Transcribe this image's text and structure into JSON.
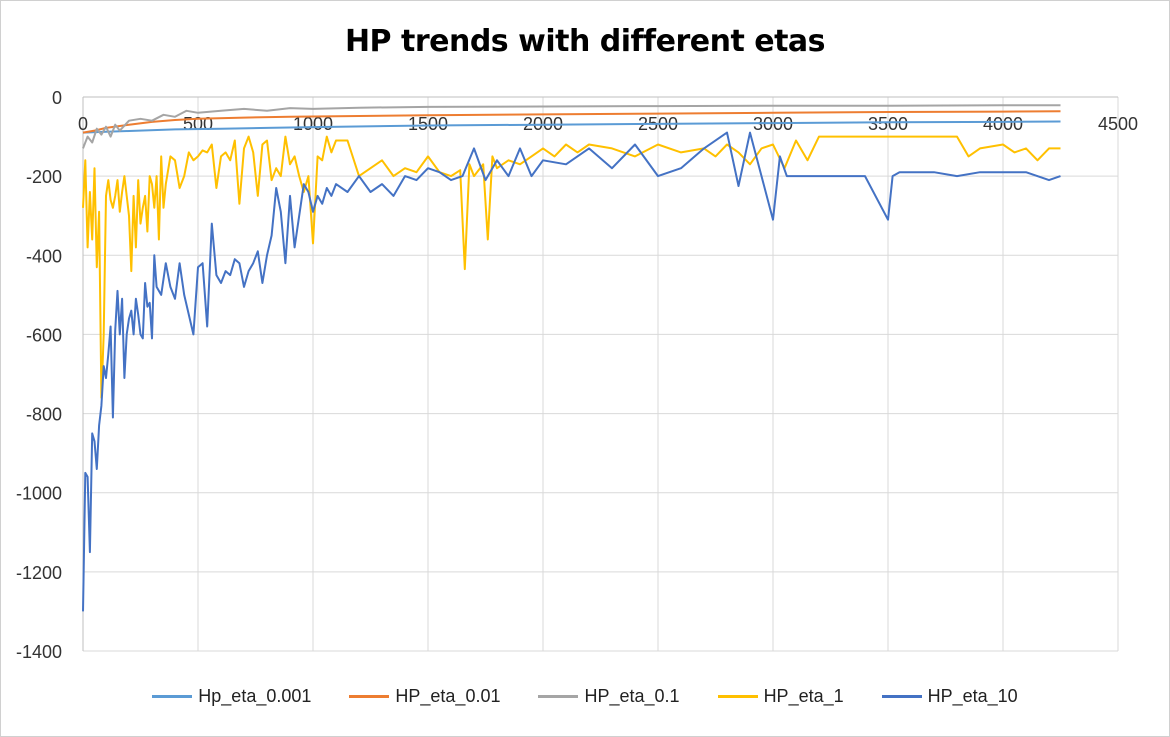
{
  "chart_data": {
    "type": "line",
    "title": "HP trends with different etas",
    "xlabel": "",
    "ylabel": "",
    "xlim": [
      0,
      4500
    ],
    "ylim": [
      -1400,
      0
    ],
    "x_ticks": [
      "0",
      "500",
      "1000",
      "1500",
      "2000",
      "2500",
      "3000",
      "3500",
      "4000",
      "4500"
    ],
    "y_ticks": [
      "0",
      "-200",
      "-400",
      "-600",
      "-800",
      "-1000",
      "-1200",
      "-1400"
    ],
    "grid": true,
    "legend_position": "bottom",
    "series": [
      {
        "name": "Hp_eta_0.001",
        "color": "#5B9BD5",
        "x": [
          0,
          100,
          200,
          400,
          600,
          800,
          1000,
          1500,
          2000,
          2500,
          3000,
          3500,
          4000,
          4250
        ],
        "y": [
          -90,
          -88,
          -86,
          -82,
          -80,
          -78,
          -76,
          -72,
          -70,
          -68,
          -66,
          -64,
          -63,
          -62
        ]
      },
      {
        "name": "HP_eta_0.01",
        "color": "#ED7D31",
        "x": [
          0,
          50,
          100,
          200,
          300,
          400,
          500,
          700,
          900,
          1200,
          1500,
          2000,
          2500,
          3000,
          3500,
          4000,
          4250
        ],
        "y": [
          -90,
          -85,
          -78,
          -70,
          -63,
          -58,
          -55,
          -52,
          -50,
          -48,
          -46,
          -44,
          -42,
          -40,
          -38,
          -37,
          -36
        ]
      },
      {
        "name": "HP_eta_0.1",
        "color": "#A5A5A5",
        "x": [
          0,
          20,
          40,
          60,
          80,
          100,
          120,
          140,
          160,
          200,
          250,
          300,
          350,
          400,
          450,
          500,
          600,
          700,
          800,
          900,
          1000,
          1200,
          1500,
          2000,
          2500,
          3000,
          3500,
          4000,
          4250
        ],
        "y": [
          -130,
          -100,
          -115,
          -80,
          -95,
          -75,
          -100,
          -70,
          -85,
          -60,
          -55,
          -60,
          -45,
          -50,
          -35,
          -40,
          -35,
          -30,
          -35,
          -28,
          -30,
          -27,
          -25,
          -24,
          -23,
          -22,
          -22,
          -21,
          -21
        ]
      },
      {
        "name": "HP_eta_1",
        "color": "#FFC000",
        "x": [
          0,
          10,
          20,
          30,
          40,
          50,
          60,
          70,
          80,
          90,
          100,
          110,
          120,
          130,
          140,
          150,
          160,
          170,
          180,
          190,
          200,
          210,
          220,
          230,
          240,
          250,
          260,
          270,
          280,
          290,
          300,
          310,
          320,
          330,
          340,
          350,
          360,
          380,
          400,
          420,
          440,
          460,
          480,
          500,
          520,
          540,
          560,
          580,
          600,
          620,
          640,
          660,
          680,
          700,
          720,
          740,
          760,
          780,
          800,
          820,
          840,
          860,
          880,
          900,
          920,
          940,
          960,
          980,
          1000,
          1020,
          1040,
          1060,
          1080,
          1100,
          1150,
          1200,
          1250,
          1300,
          1350,
          1400,
          1450,
          1500,
          1550,
          1600,
          1640,
          1660,
          1680,
          1700,
          1740,
          1760,
          1780,
          1800,
          1850,
          1900,
          1950,
          2000,
          2050,
          2100,
          2150,
          2200,
          2300,
          2400,
          2500,
          2600,
          2700,
          2750,
          2800,
          2850,
          2900,
          2950,
          3000,
          3050,
          3100,
          3150,
          3200,
          3300,
          3400,
          3500,
          3600,
          3700,
          3800,
          3850,
          3900,
          4000,
          4050,
          4100,
          4150,
          4200,
          4250
        ],
        "y": [
          -280,
          -160,
          -380,
          -240,
          -360,
          -180,
          -430,
          -290,
          -760,
          -600,
          -250,
          -210,
          -260,
          -280,
          -250,
          -210,
          -290,
          -240,
          -200,
          -250,
          -300,
          -440,
          -250,
          -380,
          -210,
          -320,
          -280,
          -250,
          -340,
          -200,
          -220,
          -280,
          -200,
          -360,
          -150,
          -280,
          -220,
          -150,
          -160,
          -230,
          -200,
          -140,
          -160,
          -150,
          -135,
          -140,
          -120,
          -230,
          -150,
          -140,
          -160,
          -110,
          -270,
          -130,
          -100,
          -140,
          -250,
          -120,
          -110,
          -210,
          -180,
          -200,
          -100,
          -170,
          -150,
          -200,
          -240,
          -200,
          -370,
          -150,
          -160,
          -100,
          -140,
          -110,
          -110,
          -200,
          -180,
          -160,
          -200,
          -180,
          -190,
          -150,
          -190,
          -200,
          -185,
          -435,
          -170,
          -200,
          -170,
          -360,
          -150,
          -180,
          -160,
          -170,
          -150,
          -130,
          -150,
          -120,
          -140,
          -120,
          -130,
          -150,
          -120,
          -140,
          -130,
          -150,
          -120,
          -140,
          -170,
          -130,
          -120,
          -180,
          -110,
          -160,
          -100,
          -100,
          -100,
          -100,
          -100,
          -100,
          -100,
          -150,
          -130,
          -120,
          -140,
          -130,
          -160,
          -130,
          -130
        ]
      },
      {
        "name": "HP_eta_10",
        "color": "#4472C4",
        "x": [
          0,
          10,
          20,
          30,
          40,
          50,
          60,
          70,
          80,
          90,
          100,
          110,
          120,
          130,
          140,
          150,
          160,
          170,
          180,
          190,
          200,
          210,
          220,
          230,
          240,
          250,
          260,
          270,
          280,
          290,
          300,
          310,
          320,
          340,
          360,
          380,
          400,
          420,
          440,
          460,
          480,
          500,
          520,
          540,
          560,
          580,
          600,
          620,
          640,
          660,
          680,
          700,
          720,
          740,
          760,
          780,
          800,
          820,
          840,
          860,
          880,
          900,
          920,
          940,
          960,
          980,
          1000,
          1020,
          1040,
          1060,
          1080,
          1100,
          1150,
          1200,
          1250,
          1300,
          1350,
          1400,
          1450,
          1500,
          1550,
          1600,
          1650,
          1700,
          1750,
          1800,
          1850,
          1900,
          1950,
          2000,
          2100,
          2200,
          2300,
          2400,
          2500,
          2600,
          2700,
          2800,
          2850,
          2900,
          2950,
          3000,
          3030,
          3060,
          3100,
          3150,
          3200,
          3300,
          3400,
          3500,
          3520,
          3550,
          3600,
          3700,
          3800,
          3900,
          4000,
          4100,
          4200,
          4250
        ],
        "y": [
          -1300,
          -950,
          -960,
          -1150,
          -850,
          -870,
          -940,
          -830,
          -780,
          -680,
          -710,
          -650,
          -580,
          -810,
          -590,
          -490,
          -600,
          -510,
          -710,
          -600,
          -560,
          -540,
          -600,
          -510,
          -550,
          -600,
          -610,
          -470,
          -530,
          -520,
          -610,
          -400,
          -480,
          -500,
          -420,
          -480,
          -510,
          -420,
          -500,
          -550,
          -600,
          -430,
          -420,
          -580,
          -320,
          -450,
          -470,
          -440,
          -450,
          -410,
          -420,
          -480,
          -440,
          -420,
          -390,
          -470,
          -400,
          -350,
          -230,
          -290,
          -420,
          -250,
          -380,
          -300,
          -220,
          -240,
          -290,
          -250,
          -270,
          -230,
          -250,
          -220,
          -240,
          -200,
          -240,
          -220,
          -250,
          -200,
          -210,
          -180,
          -190,
          -210,
          -200,
          -130,
          -210,
          -160,
          -200,
          -130,
          -200,
          -160,
          -170,
          -130,
          -180,
          -120,
          -200,
          -180,
          -130,
          -90,
          -225,
          -90,
          -200,
          -310,
          -150,
          -200,
          -200,
          -200,
          -200,
          -200,
          -200,
          -310,
          -200,
          -190,
          -190,
          -190,
          -200,
          -190,
          -190,
          -190,
          -210,
          -200
        ]
      }
    ]
  }
}
